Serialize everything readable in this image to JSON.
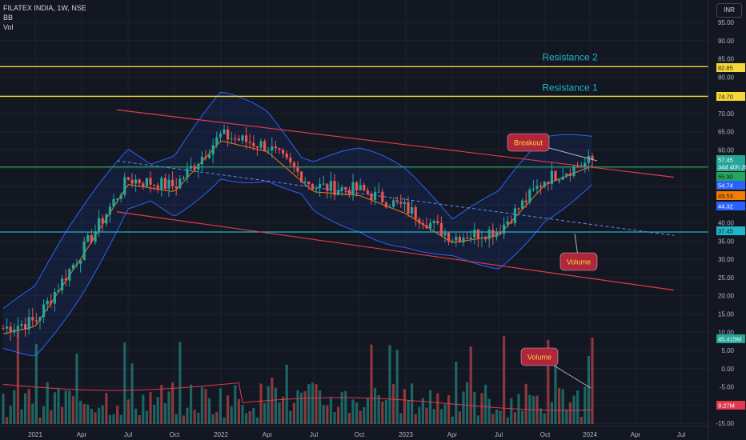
{
  "legend": {
    "symbol_line": "FILATEX INDIA, 1W, NSE",
    "indicator_bb": "BB",
    "indicator_vol": "Vol"
  },
  "currency": "INR",
  "chart_data": {
    "type": "candlestick",
    "title": "FILATEX INDIA, 1W, NSE",
    "price_axis": {
      "ticks": [
        "95.00",
        "90.00",
        "85.00",
        "80.00",
        "75.00",
        "70.00",
        "65.00",
        "60.00",
        "55.00",
        "50.00",
        "45.00",
        "40.00",
        "35.00",
        "30.00",
        "25.00",
        "20.00",
        "15.00",
        "10.00",
        "5.00",
        "0.00",
        "-5.00",
        "-10.00",
        "-15.00"
      ]
    },
    "time_axis": {
      "ticks": [
        "2021",
        "Apr",
        "Jul",
        "Oct",
        "2022",
        "Apr",
        "Jul",
        "Oct",
        "2023",
        "Apr",
        "Jul",
        "Oct",
        "2024",
        "Apr",
        "Jul"
      ]
    },
    "horizontal_lines": [
      {
        "name": "Resistance 2",
        "price": 82.85,
        "color": "#f5d738",
        "label": "Resistance 2"
      },
      {
        "name": "Resistance 1",
        "price": 74.7,
        "color": "#f5d738",
        "label": "Resistance 1"
      },
      {
        "name": "breakout level",
        "price": 55.3,
        "color": "#26a65b",
        "label": ""
      },
      {
        "name": "support level",
        "price": 37.45,
        "color": "#1fb6c9",
        "label": ""
      }
    ],
    "channel": {
      "upper": [
        [
          21.5,
          71
        ],
        [
          36.8,
          52.5
        ]
      ],
      "lower": [
        [
          21.5,
          43
        ],
        [
          36.8,
          21.5
        ]
      ],
      "mid": [
        [
          21.5,
          57
        ],
        [
          36.8,
          36.5
        ]
      ],
      "color": "#e2384d"
    },
    "price_labels": [
      {
        "value": "82.85",
        "bg": "#f5d738",
        "fg": "#131722"
      },
      {
        "value": "74.70",
        "bg": "#f5d738",
        "fg": "#131722"
      },
      {
        "value": "57.45",
        "bg": "#26a69a",
        "fg": "#ffffff"
      },
      {
        "value": "34d 40h 20",
        "bg": "#26a69a",
        "fg": "#ffffff"
      },
      {
        "value": "55.30",
        "bg": "#26a65b",
        "fg": "#131722"
      },
      {
        "value": "54.74",
        "bg": "#2962ff",
        "fg": "#ffffff"
      },
      {
        "value": "49.53",
        "bg": "#f57c00",
        "fg": "#131722"
      },
      {
        "value": "44.32",
        "bg": "#2962ff",
        "fg": "#ffffff"
      },
      {
        "value": "37.45",
        "bg": "#1fb6c9",
        "fg": "#131722"
      },
      {
        "value": "45.415M",
        "bg": "#26a69a",
        "fg": "#ffffff"
      },
      {
        "value": "9.27M",
        "bg": "#e2384d",
        "fg": "#ffffff"
      }
    ],
    "callouts": [
      {
        "text": "Breakout",
        "bg": "#b2263c"
      },
      {
        "text": "Volume",
        "bg": "#b2263c"
      },
      {
        "text": "Volume",
        "bg": "#b2263c"
      }
    ],
    "annotations": [
      {
        "text": "Resistance 2",
        "color": "#1fb6c9"
      },
      {
        "text": "Resistance 1",
        "color": "#1fb6c9"
      }
    ],
    "candles_summary": [
      {
        "period": "2021-01",
        "close": 13
      },
      {
        "period": "2021-04",
        "close": 32
      },
      {
        "period": "2021-07",
        "close": 52
      },
      {
        "period": "2021-10",
        "close": 50
      },
      {
        "period": "2022-01",
        "close": 64
      },
      {
        "period": "2022-04",
        "close": 61
      },
      {
        "period": "2022-07",
        "close": 50
      },
      {
        "period": "2022-10",
        "close": 49
      },
      {
        "period": "2023-01",
        "close": 44
      },
      {
        "period": "2023-04",
        "close": 36
      },
      {
        "period": "2023-07",
        "close": 38
      },
      {
        "period": "2023-10",
        "close": 52
      },
      {
        "period": "2024-01",
        "close": 57.45
      }
    ],
    "volume_last": "45.415M",
    "volume_ma": "9.27M"
  }
}
